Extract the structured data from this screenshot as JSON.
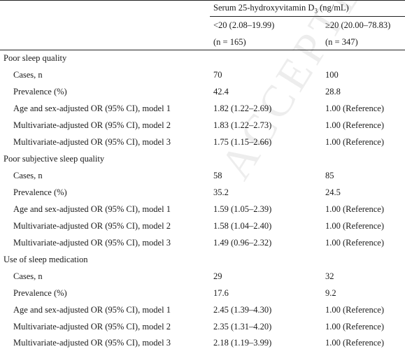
{
  "header": {
    "group_title_main": "Serum 25-hydroxyvitamin D",
    "group_title_sub": "3",
    "group_title_unit": " (ng/mL)",
    "col_low_range": "<20 (2.08–19.99)",
    "col_high_range": "≥20 (20.00–78.83)",
    "col_low_n": "(n = 165)",
    "col_high_n": "(n = 347)"
  },
  "sections": [
    {
      "title": "Poor sleep quality",
      "rows": [
        {
          "label": "Cases, n",
          "low": "70",
          "high": "100"
        },
        {
          "label": "Prevalence (%)",
          "low": "42.4",
          "high": "28.8"
        },
        {
          "label": "Age and sex-adjusted OR (95% CI), model 1",
          "low": "1.82 (1.22–2.69)",
          "high": "1.00 (Reference)"
        },
        {
          "label": "Multivariate-adjusted OR (95% CI), model 2",
          "low": "1.83 (1.22–2.73)",
          "high": "1.00 (Reference)"
        },
        {
          "label": "Multivariate-adjusted OR (95% CI), model 3",
          "low": "1.75 (1.15–2.66)",
          "high": "1.00 (Reference)"
        }
      ]
    },
    {
      "title": "Poor subjective sleep quality",
      "rows": [
        {
          "label": "Cases, n",
          "low": "58",
          "high": "85"
        },
        {
          "label": "Prevalence (%)",
          "low": "35.2",
          "high": "24.5"
        },
        {
          "label": "Age and sex-adjusted OR (95% CI), model 1",
          "low": "1.59 (1.05–2.39)",
          "high": "1.00 (Reference)"
        },
        {
          "label": "Multivariate-adjusted OR (95% CI), model 2",
          "low": "1.58 (1.04–2.40)",
          "high": "1.00 (Reference)"
        },
        {
          "label": "Multivariate-adjusted OR (95% CI), model 3",
          "low": "1.49 (0.96–2.32)",
          "high": "1.00 (Reference)"
        }
      ]
    },
    {
      "title": "Use of sleep medication",
      "rows": [
        {
          "label": "Cases, n",
          "low": "29",
          "high": "32"
        },
        {
          "label": "Prevalence (%)",
          "low": "17.6",
          "high": "9.2"
        },
        {
          "label": "Age and sex-adjusted OR (95% CI), model 1",
          "low": "2.45 (1.39–4.30)",
          "high": "1.00 (Reference)"
        },
        {
          "label": "Multivariate-adjusted OR (95% CI), model 2",
          "low": "2.35 (1.31–4.20)",
          "high": "1.00 (Reference)"
        },
        {
          "label": "Multivariate-adjusted OR (95% CI), model 3",
          "low": "2.18 (1.19–3.99)",
          "high": "1.00 (Reference)"
        }
      ]
    }
  ],
  "watermark": "ACCEPTED MANUSCRIPT"
}
